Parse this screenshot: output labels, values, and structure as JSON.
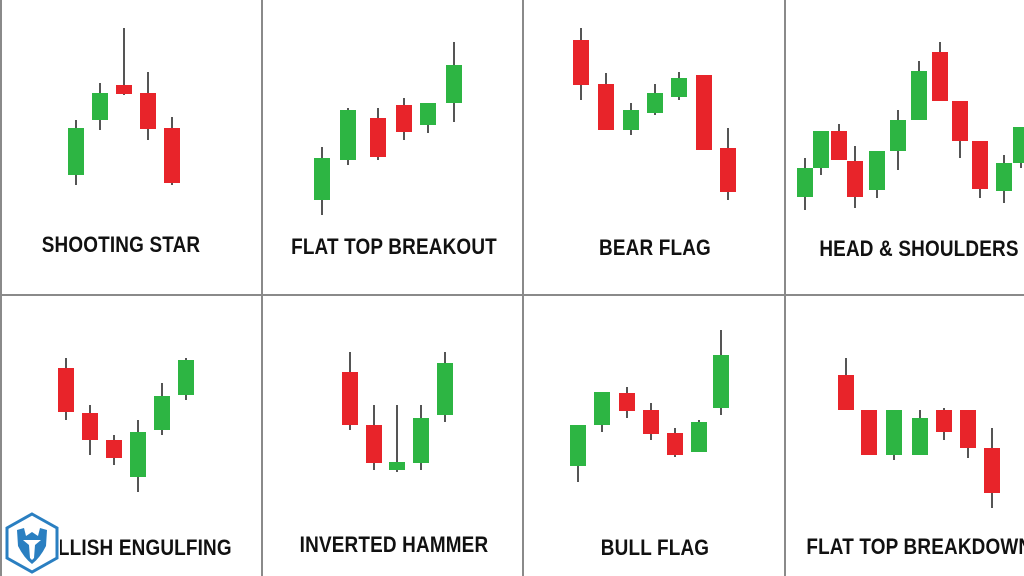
{
  "colors": {
    "bullish": "#2db543",
    "bearish": "#e8242a",
    "wick": "#555555",
    "grid": "#8a8a8a"
  },
  "patterns": [
    {
      "label": "SHOOTING STAR"
    },
    {
      "label": "FLAT TOP BREAKOUT"
    },
    {
      "label": "BEAR FLAG"
    },
    {
      "label": "HEAD & SHOULDERS"
    },
    {
      "label": "BULLISH ENGULFING"
    },
    {
      "label": "INVERTED HAMMER"
    },
    {
      "label": "BULL FLAG"
    },
    {
      "label": "FLAT TOP BREAKDOWN"
    }
  ],
  "logo": {
    "icon": "shield-hexagon-logo"
  }
}
